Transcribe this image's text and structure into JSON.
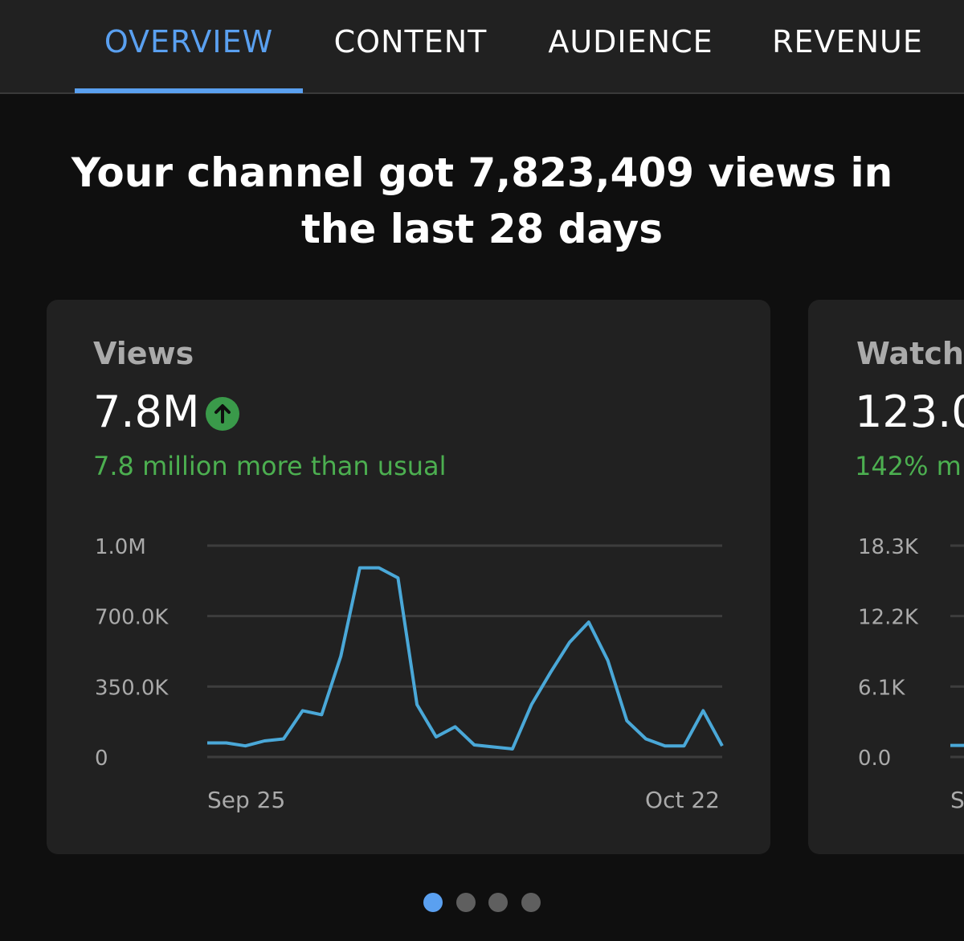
{
  "tabs": [
    {
      "label": "OVERVIEW",
      "active": true
    },
    {
      "label": "CONTENT",
      "active": false
    },
    {
      "label": "AUDIENCE",
      "active": false
    },
    {
      "label": "REVENUE",
      "active": false
    }
  ],
  "headline": "Your channel got 7,823,409 views in the last 28 days",
  "cards": [
    {
      "title": "Views",
      "value": "7.8M",
      "trend_icon": "arrow-up-icon",
      "note": "7.8 million more than usual",
      "chart_data": {
        "type": "line",
        "y_tick_labels": [
          "0",
          "350.0K",
          "700.0K",
          "1.0M"
        ],
        "y_ticks": [
          0,
          350000,
          700000,
          1050000
        ],
        "ylim": [
          0,
          1050000
        ],
        "x_tick_labels": [
          "Sep 25",
          "Oct 22"
        ],
        "x": [
          "Sep 25",
          "Sep 26",
          "Sep 27",
          "Sep 28",
          "Sep 29",
          "Sep 30",
          "Oct 1",
          "Oct 2",
          "Oct 3",
          "Oct 4",
          "Oct 5",
          "Oct 6",
          "Oct 7",
          "Oct 8",
          "Oct 9",
          "Oct 10",
          "Oct 11",
          "Oct 12",
          "Oct 13",
          "Oct 14",
          "Oct 15",
          "Oct 16",
          "Oct 17",
          "Oct 18",
          "Oct 19",
          "Oct 20",
          "Oct 21",
          "Oct 22"
        ],
        "values": [
          70000,
          70000,
          55000,
          80000,
          90000,
          230000,
          210000,
          500000,
          940000,
          940000,
          890000,
          260000,
          100000,
          150000,
          60000,
          50000,
          40000,
          260000,
          420000,
          570000,
          670000,
          480000,
          180000,
          90000,
          55000,
          55000,
          230000,
          55000
        ],
        "line_color": "#4aa8d8",
        "grid": true
      }
    },
    {
      "title": "Watch",
      "value": "123.0",
      "note": "142% m",
      "chart_data": {
        "type": "line",
        "y_tick_labels": [
          "0.0",
          "6.1K",
          "12.2K",
          "18.3K"
        ],
        "y_ticks": [
          0,
          6100,
          12200,
          18300
        ],
        "ylim": [
          0,
          18300
        ],
        "x_tick_labels": [
          "S"
        ],
        "x": [
          "Sep 25"
        ],
        "values": [
          1000
        ],
        "line_color": "#4aa8d8",
        "grid": true
      }
    }
  ],
  "pagination": {
    "count": 4,
    "active": 0
  }
}
